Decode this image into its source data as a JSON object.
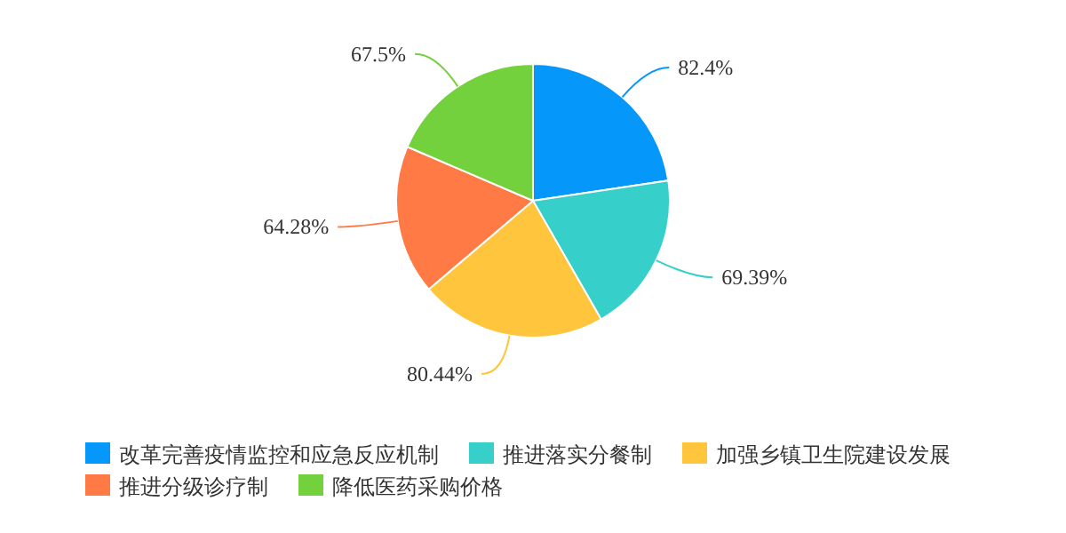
{
  "chart_data": {
    "type": "pie",
    "categories": [
      "改革完善疫情监控和应急反应机制",
      "推进落实分餐制",
      "加强乡镇卫生院建设发展",
      "推进分级诊疗制",
      "降低医药采购价格"
    ],
    "values": [
      82.4,
      69.39,
      80.44,
      64.28,
      67.5
    ],
    "colors": [
      "#0598fa",
      "#36cfc9",
      "#ffc53d",
      "#ff7a45",
      "#73d13d"
    ],
    "value_labels": [
      "82.4%",
      "69.39%",
      "80.44%",
      "64.28%",
      "67.5%"
    ],
    "legend": "bottom"
  }
}
